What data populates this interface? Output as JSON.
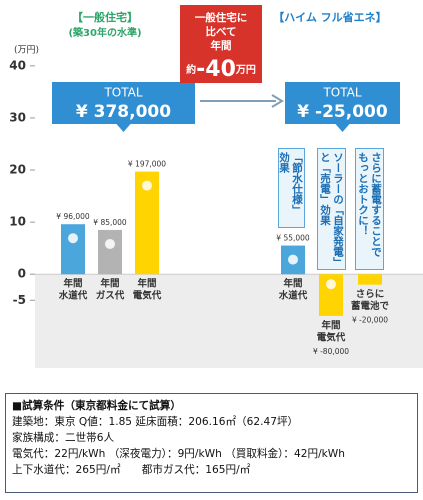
{
  "chart_data": {
    "type": "bar",
    "ylabel": "(万円)",
    "ylim": [
      -18,
      44
    ],
    "yticks": [
      40,
      30,
      20,
      10,
      0,
      -5
    ],
    "groups": [
      {
        "title": "【一般住宅】",
        "subtitle": "(築30年の水準)",
        "total_title": "TOTAL",
        "total": "¥ 378,000"
      },
      {
        "title": "【ハイム フル省エネ】",
        "total_title": "TOTAL",
        "total": "¥ -25,000"
      }
    ],
    "callout": {
      "lines": [
        "一般住宅に",
        "比べて",
        "年間"
      ],
      "prefix": "約",
      "value": "-40",
      "unit": "万円"
    },
    "categories": [
      [
        "年間",
        "水道代"
      ],
      [
        "年間",
        "ガス代"
      ],
      [
        "年間",
        "電気代"
      ],
      [
        "年間",
        "水道代"
      ],
      [
        "年間",
        "電気代"
      ],
      [
        "さらに",
        "蓄電池で"
      ]
    ],
    "values": [
      9.6,
      8.5,
      19.7,
      5.5,
      -8.0,
      -2.0
    ],
    "value_labels": [
      "¥ 96,000",
      "¥ 85,000",
      "¥ 197,000",
      "¥ 55,000",
      "¥ -80,000",
      "¥ -20,000"
    ],
    "colors": [
      "#4ba6dc",
      "#b3b3b3",
      "#ffd400",
      "#4ba6dc",
      "#ffd400",
      "#ffd400"
    ],
    "notes": [
      "「節水仕様」効果",
      "ソーラーの「自家発電」と「売電」効果",
      "さらに蓄電することでもっとおトクに！"
    ]
  },
  "conditions": {
    "title": "■試算条件（東京都料金にて試算）",
    "lines": [
      "建築地：東京 Q値：1.85 延床面積：206.16㎡（62.47坪）",
      "家族構成：二世帯6人",
      "電気代：22円/kWh （深夜電力）：9円/kWh （買取料金）：42円/kWh",
      "上下水道代：265円/㎡　　都市ガス代：165円/㎡"
    ]
  }
}
